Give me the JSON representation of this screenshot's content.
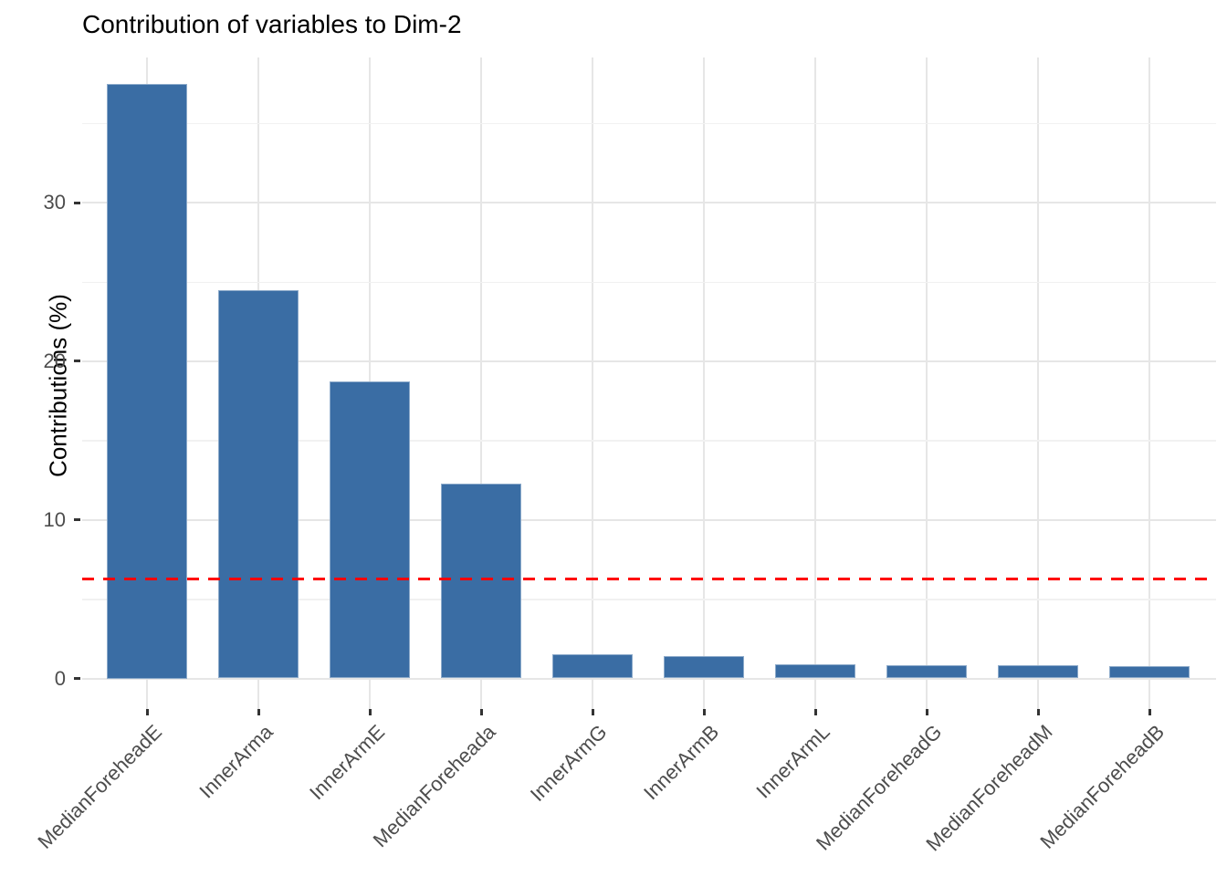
{
  "chart_data": {
    "type": "bar",
    "title": "Contribution of variables to Dim-2",
    "xlabel": "",
    "ylabel": "Contributions (%)",
    "categories": [
      "MedianForeheadE",
      "InnerArma",
      "InnerArmE",
      "MedianForeheada",
      "InnerArmG",
      "InnerArmB",
      "InnerArmL",
      "MedianForeheadG",
      "MedianForeheadM",
      "MedianForeheadB"
    ],
    "values": [
      37.5,
      24.5,
      18.7,
      12.3,
      1.5,
      1.4,
      0.9,
      0.85,
      0.85,
      0.8
    ],
    "reference_line": {
      "value": 6.25,
      "style": "dashed",
      "color": "#FF0000"
    },
    "y_major_ticks": [
      0,
      10,
      20,
      30
    ],
    "y_minor_gridlines": [
      5,
      15,
      25,
      35
    ],
    "ylim": [
      -1.9,
      39.2
    ],
    "x_label_rotation_deg": -45,
    "grid": "on",
    "legend_position": "none",
    "bar_color": "#3A6DA4",
    "background_color": "#FFFFFF",
    "grid_color": "#E6E6E6",
    "axis_text_color": "#4D4D4D"
  }
}
